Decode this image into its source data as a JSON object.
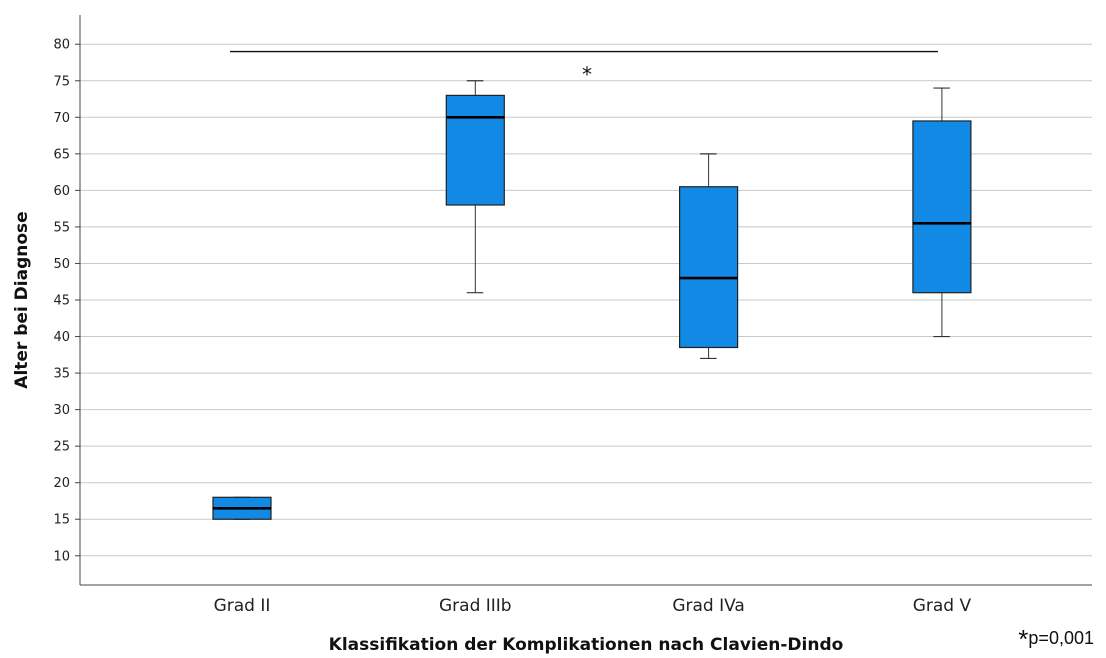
{
  "chart_data": {
    "type": "boxplot",
    "xlabel": "Klassifikation der Komplikationen nach Clavien-Dindo",
    "ylabel": "Alter bei Diagnose",
    "ylim": [
      6,
      84
    ],
    "yticks": [
      10,
      15,
      20,
      25,
      30,
      35,
      40,
      45,
      50,
      55,
      60,
      65,
      70,
      75,
      80
    ],
    "grid": true,
    "categories": [
      "Grad II",
      "Grad IIIb",
      "Grad IVa",
      "Grad V"
    ],
    "boxes": [
      {
        "category": "Grad II",
        "min": 15,
        "q1": 15,
        "median": 16.5,
        "q3": 18,
        "max": 18
      },
      {
        "category": "Grad IIIb",
        "min": 46,
        "q1": 58,
        "median": 70,
        "q3": 73,
        "max": 75
      },
      {
        "category": "Grad IVa",
        "min": 37,
        "q1": 38.5,
        "median": 48,
        "q3": 60.5,
        "max": 65
      },
      {
        "category": "Grad V",
        "min": 40,
        "q1": 46,
        "median": 55.5,
        "q3": 69.5,
        "max": 74
      }
    ],
    "box_color": "#1289e4",
    "significance": {
      "from": "Grad II",
      "to": "Grad V",
      "y": 79,
      "marker": "*"
    }
  },
  "footnote": {
    "star": "*",
    "text": "p=0,001"
  }
}
